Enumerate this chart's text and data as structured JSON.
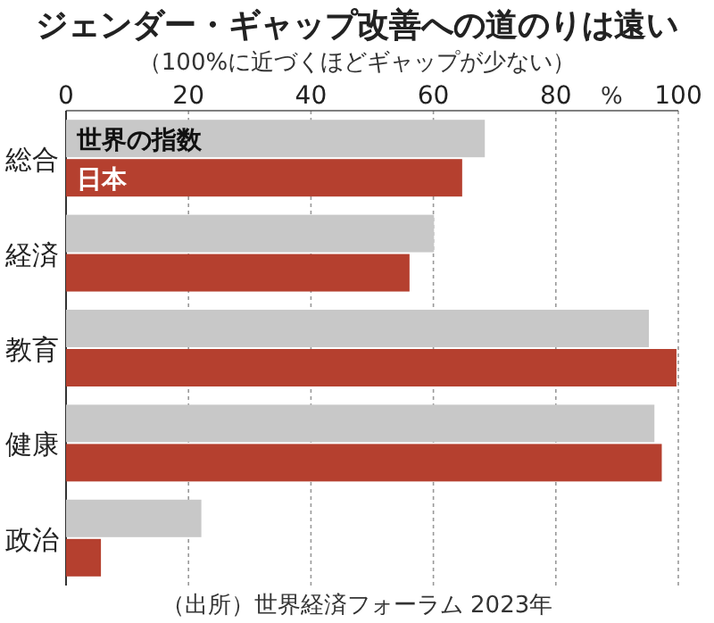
{
  "chart_data": {
    "type": "bar",
    "orientation": "horizontal",
    "title": "ジェンダー・ギャップ改善への道のりは遠い",
    "subtitle": "（100%に近づくほどギャップが少ない）",
    "xlabel": "%",
    "categories": [
      "総合",
      "経済",
      "教育",
      "健康",
      "政治"
    ],
    "series": [
      {
        "name": "世界の指数",
        "color": "#c8c8c8",
        "values": [
          68.4,
          60.1,
          95.2,
          96.1,
          22.1
        ]
      },
      {
        "name": "日本",
        "color": "#b5402f",
        "values": [
          64.7,
          56.1,
          99.7,
          97.3,
          5.7
        ]
      }
    ],
    "xlim": [
      0,
      100
    ],
    "xticks": [
      0,
      20,
      40,
      60,
      80,
      100
    ],
    "grid": "x",
    "annotations": [
      "（出所）世界経済フォーラム 2023年"
    ]
  }
}
